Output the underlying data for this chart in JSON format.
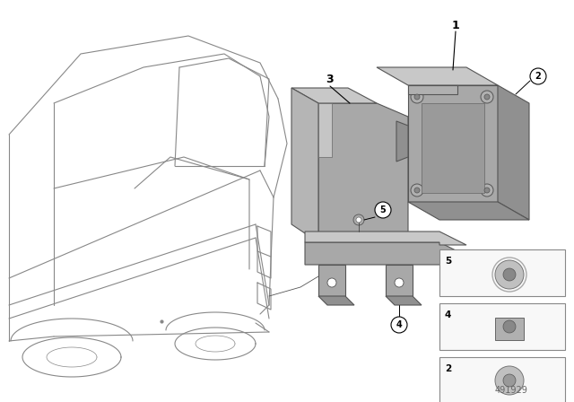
{
  "diagram_id": "491929",
  "background_color": "#ffffff",
  "car_line_color": "#888888",
  "part_color_dark": "#909090",
  "part_color_mid": "#a8a8a8",
  "part_color_light": "#c8c8c8",
  "part_edge": "#555555",
  "label_color": "#000000",
  "figsize": [
    6.4,
    4.48
  ],
  "dpi": 100
}
